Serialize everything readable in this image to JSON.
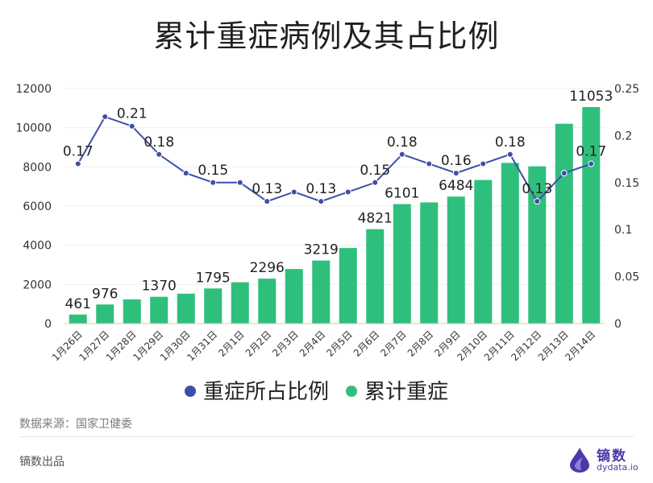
{
  "title": "累计重症病例及其占比例",
  "footer": {
    "source": "数据来源：国家卫健委",
    "brand": "镝数出品",
    "logo_name": "镝数",
    "logo_domain": "dydata.io"
  },
  "colors": {
    "bar": "#2fbf7c",
    "line": "#3d4fa8",
    "axis_text": "#333333",
    "grid": "#eeeeee"
  },
  "chart_data": {
    "type": "bar",
    "categories": [
      "1月26日",
      "1月27日",
      "1月28日",
      "1月29日",
      "1月30日",
      "1月31日",
      "2月1日",
      "2月2日",
      "2月3日",
      "2月4日",
      "2月5日",
      "2月6日",
      "2月7日",
      "2月8日",
      "2月9日",
      "2月10日",
      "2月11日",
      "2月12日",
      "2月13日",
      "2月14日"
    ],
    "series": [
      {
        "name": "累计重症",
        "type": "bar",
        "axis": "left",
        "values": [
          461,
          976,
          1239,
          1370,
          1527,
          1795,
          2110,
          2296,
          2788,
          3219,
          3859,
          4821,
          6101,
          6188,
          6484,
          7333,
          8204,
          8030,
          10204,
          11053
        ],
        "labeled": [
          0,
          1,
          3,
          5,
          7,
          9,
          11,
          12,
          14,
          19
        ]
      },
      {
        "name": "重症所占比例",
        "type": "line",
        "axis": "right",
        "values": [
          0.17,
          0.22,
          0.21,
          0.18,
          0.16,
          0.15,
          0.15,
          0.13,
          0.14,
          0.13,
          0.14,
          0.15,
          0.18,
          0.17,
          0.16,
          0.17,
          0.18,
          0.13,
          0.16,
          0.17
        ],
        "labeled": [
          0,
          2,
          3,
          5,
          7,
          9,
          11,
          12,
          14,
          16,
          17,
          19
        ]
      }
    ],
    "y_left": {
      "min": 0,
      "max": 12000,
      "ticks": [
        "0",
        "2000",
        "4000",
        "6000",
        "8000",
        "10000",
        "12000"
      ]
    },
    "y_right": {
      "min": 0,
      "max": 0.25,
      "ticks": [
        "0",
        "0.05",
        "0.1",
        "0.15",
        "0.2",
        "0.25"
      ]
    },
    "legend_position": "bottom",
    "legend": [
      "重症所占比例",
      "累计重症"
    ]
  }
}
